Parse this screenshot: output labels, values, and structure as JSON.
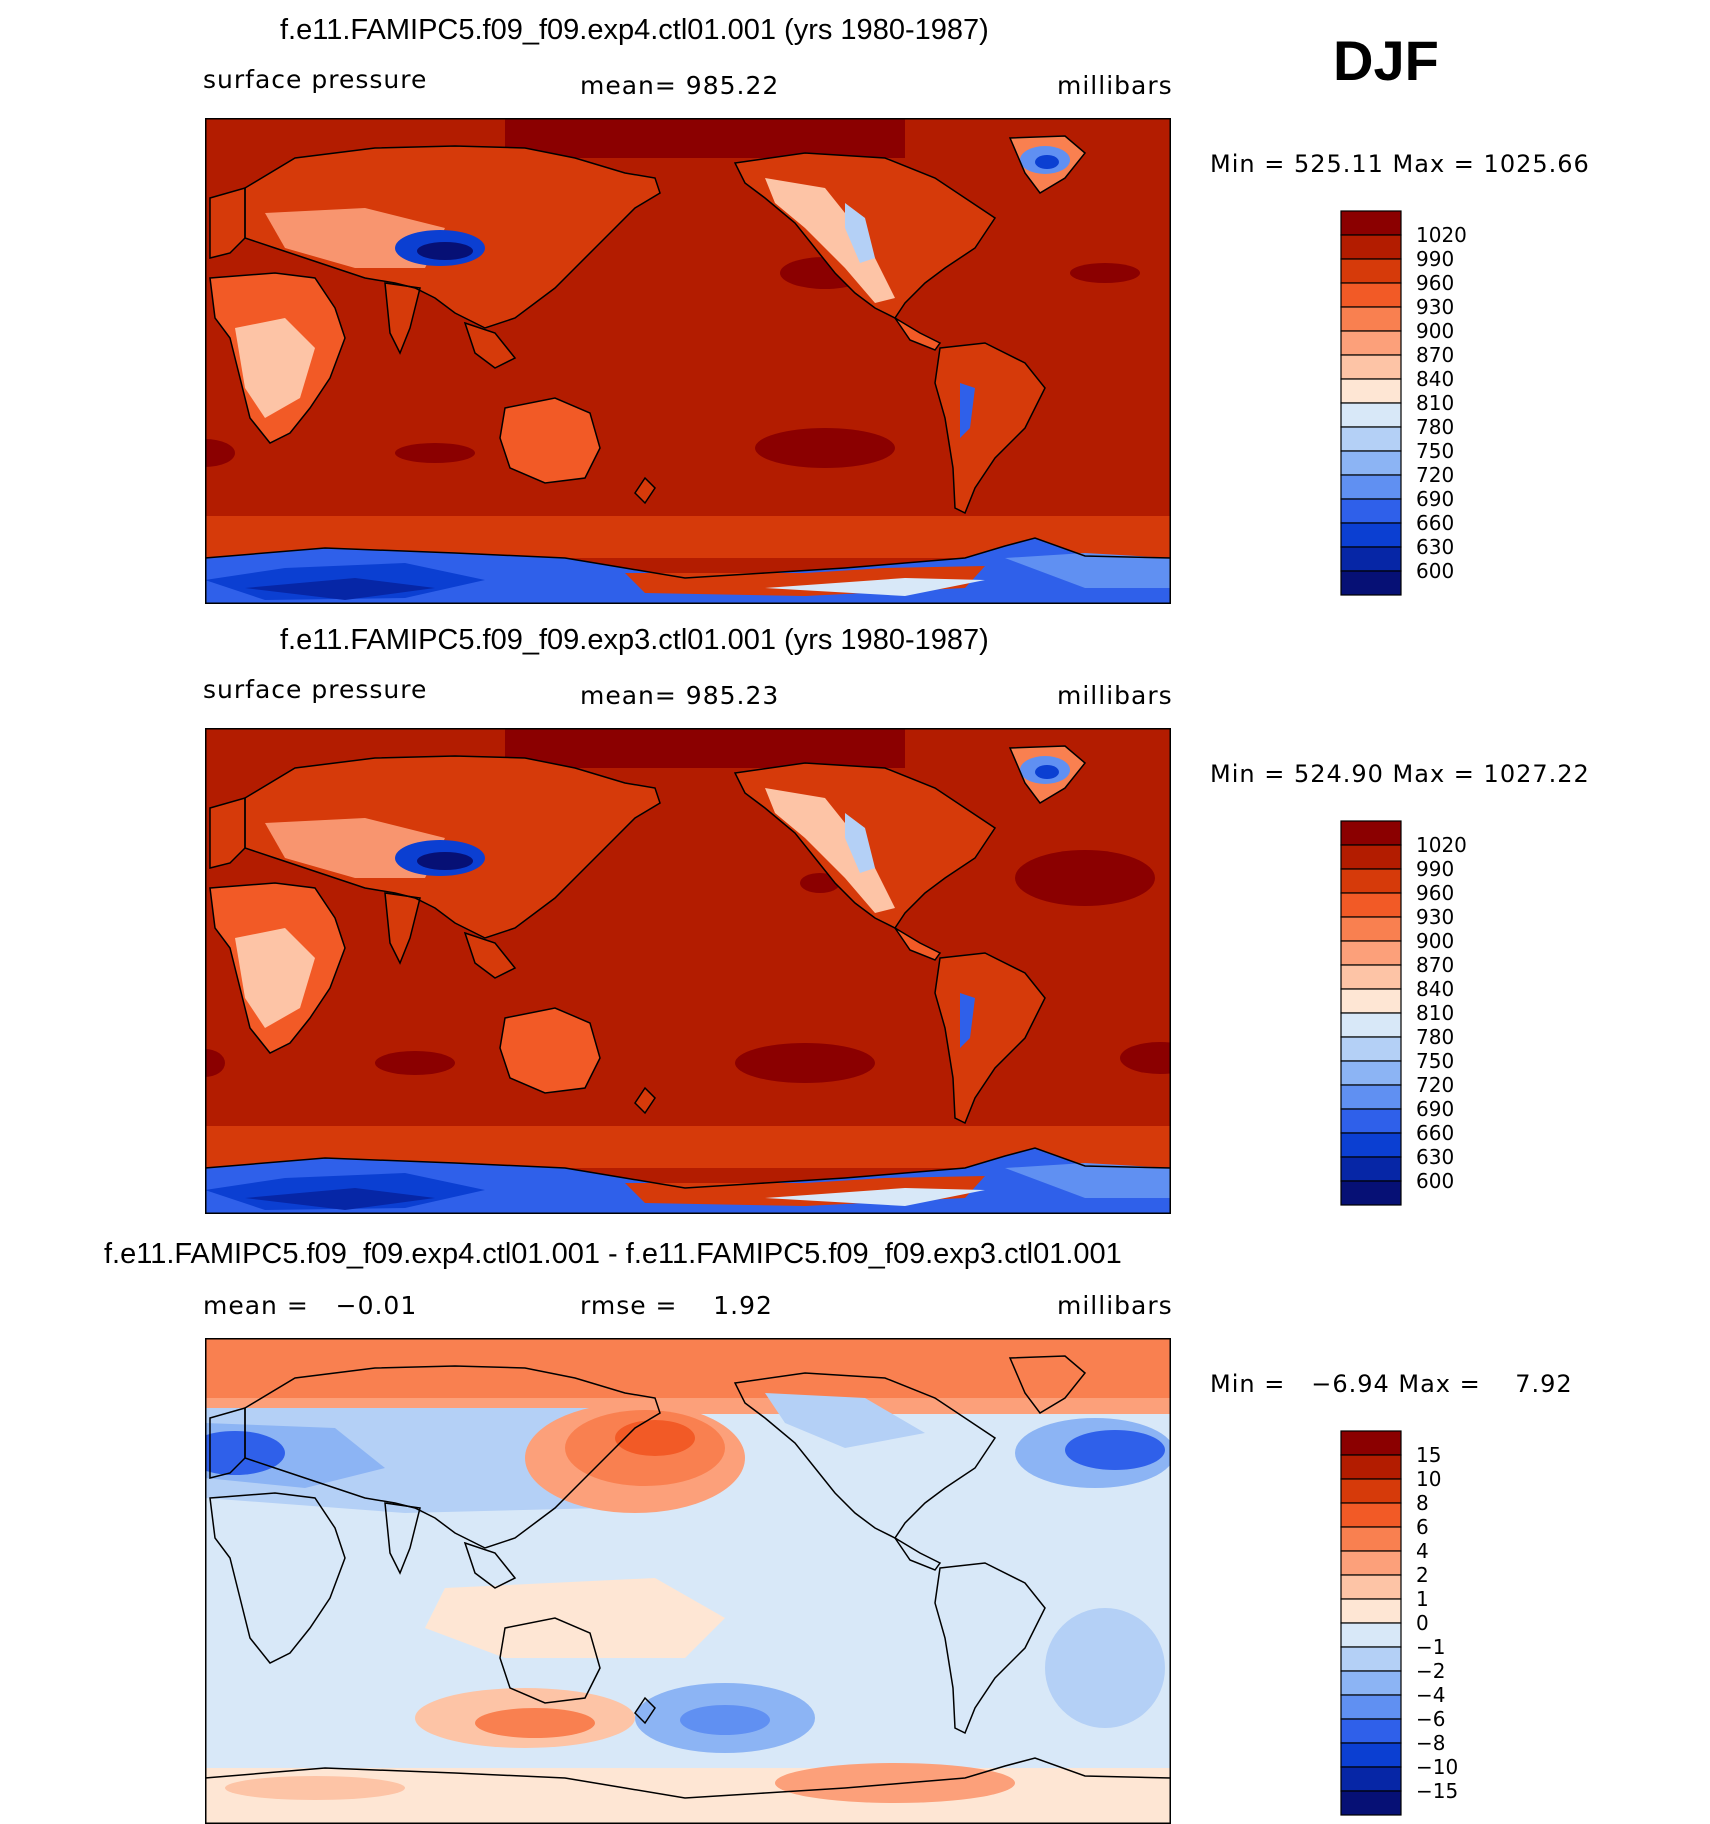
{
  "season": "DJF",
  "panels": [
    {
      "title": "f.e11.FAMIPC5.f09_f09.exp4.ctl01.001 (yrs 1980-1987)",
      "left_label": "surface pressure",
      "center_label": "mean= 985.22",
      "units": "millibars",
      "minmax": "Min = 525.11 Max = 1025.66"
    },
    {
      "title": "f.e11.FAMIPC5.f09_f09.exp3.ctl01.001 (yrs 1980-1987)",
      "left_label": "surface pressure",
      "center_label": "mean= 985.23",
      "units": "millibars",
      "minmax": "Min = 524.90 Max = 1027.22"
    },
    {
      "title": "f.e11.FAMIPC5.f09_f09.exp4.ctl01.001 - f.e11.FAMIPC5.f09_f09.exp3.ctl01.001",
      "left_label": "mean =   −0.01",
      "center_label": "rmse =    1.92",
      "units": "millibars",
      "minmax": "Min =   −6.94 Max =    7.92"
    }
  ],
  "chart_data": [
    {
      "type": "heatmap",
      "title": "f.e11.FAMIPC5.f09_f09.exp4.ctl01.001 (yrs 1980-1987)",
      "variable": "surface pressure",
      "units": "millibars",
      "mean": 985.22,
      "min": 525.11,
      "max": 1025.66,
      "colorbar_levels": [
        1020,
        990,
        960,
        930,
        900,
        870,
        840,
        810,
        780,
        750,
        720,
        690,
        660,
        630,
        600
      ],
      "colorbar_colors": [
        "#8b0000",
        "#b31c00",
        "#d63a0a",
        "#f25a26",
        "#f98050",
        "#fca07a",
        "#fdc4a6",
        "#fee6d4",
        "#d8e8f8",
        "#b4d0f6",
        "#8cb4f4",
        "#6090f2",
        "#2f60ea",
        "#0b3fd2",
        "#0626a6",
        "#061075"
      ]
    },
    {
      "type": "heatmap",
      "title": "f.e11.FAMIPC5.f09_f09.exp3.ctl01.001 (yrs 1980-1987)",
      "variable": "surface pressure",
      "units": "millibars",
      "mean": 985.23,
      "min": 524.9,
      "max": 1027.22,
      "colorbar_levels": [
        1020,
        990,
        960,
        930,
        900,
        870,
        840,
        810,
        780,
        750,
        720,
        690,
        660,
        630,
        600
      ],
      "colorbar_colors": [
        "#8b0000",
        "#b31c00",
        "#d63a0a",
        "#f25a26",
        "#f98050",
        "#fca07a",
        "#fdc4a6",
        "#fee6d4",
        "#d8e8f8",
        "#b4d0f6",
        "#8cb4f4",
        "#6090f2",
        "#2f60ea",
        "#0b3fd2",
        "#0626a6",
        "#061075"
      ]
    },
    {
      "type": "heatmap",
      "title": "f.e11.FAMIPC5.f09_f09.exp4.ctl01.001 - f.e11.FAMIPC5.f09_f09.exp3.ctl01.001",
      "units": "millibars",
      "mean": -0.01,
      "rmse": 1.92,
      "min": -6.94,
      "max": 7.92,
      "colorbar_levels": [
        "15",
        "10",
        "8",
        "6",
        "4",
        "2",
        "1",
        "0",
        "−1",
        "−2",
        "−4",
        "−6",
        "−8",
        "−10",
        "−15"
      ],
      "colorbar_colors": [
        "#8b0000",
        "#b31c00",
        "#d63a0a",
        "#f25a26",
        "#f98050",
        "#fca07a",
        "#fdc4a6",
        "#fee6d4",
        "#d8e8f8",
        "#b4d0f6",
        "#8cb4f4",
        "#6090f2",
        "#2f60ea",
        "#0b3fd2",
        "#0626a6",
        "#061075"
      ]
    }
  ]
}
